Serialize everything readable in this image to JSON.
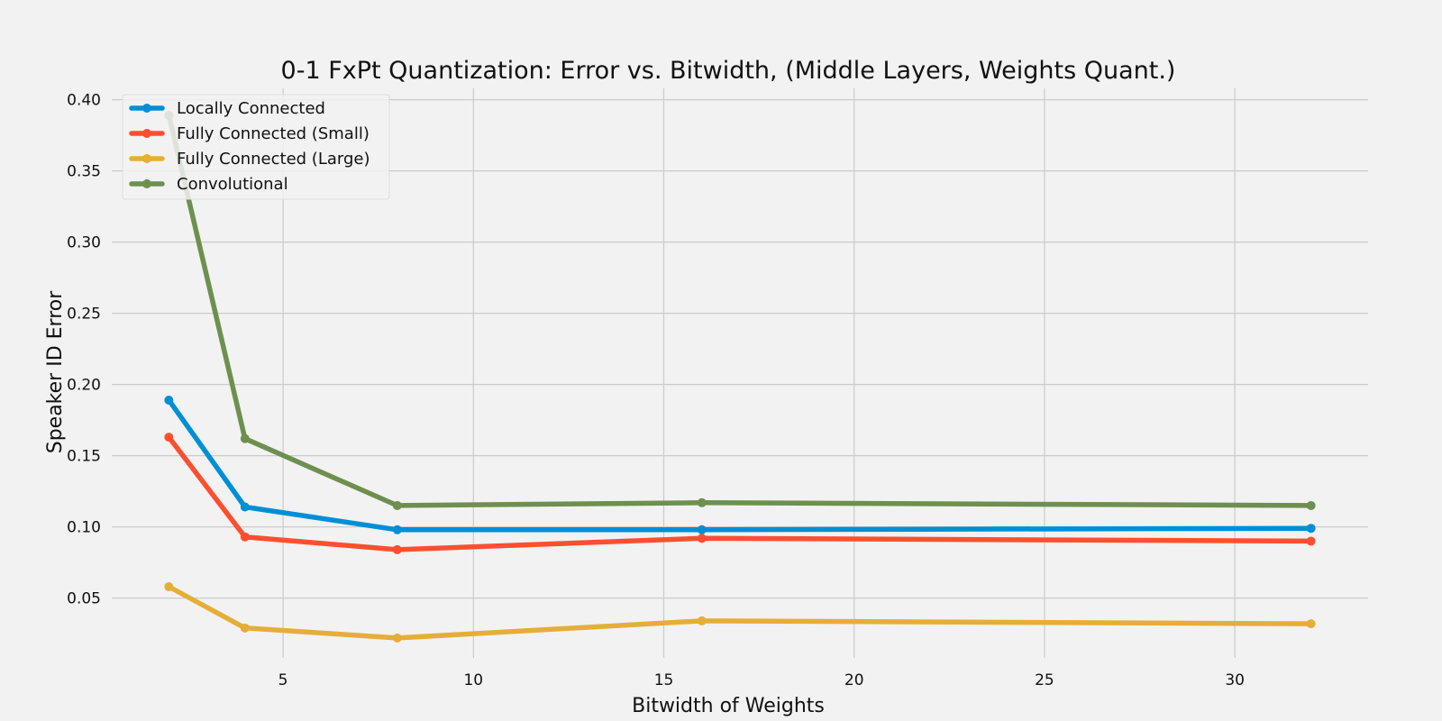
{
  "chart_data": {
    "type": "line",
    "title": "0-1 FxPt Quantization: Error vs. Bitwidth, (Middle Layers, Weights Quant.)",
    "xlabel": "Bitwidth of Weights",
    "ylabel": "Speaker ID Error",
    "x": [
      2,
      4,
      8,
      16,
      32
    ],
    "xlim": [
      0.5,
      33.5
    ],
    "ylim": [
      0.008,
      0.408
    ],
    "xticks": [
      5,
      10,
      15,
      20,
      25,
      30
    ],
    "yticks": [
      0.05,
      0.1,
      0.15,
      0.2,
      0.25,
      0.3,
      0.35,
      0.4
    ],
    "xtick_labels": [
      "5",
      "10",
      "15",
      "20",
      "25",
      "30"
    ],
    "ytick_labels": [
      "0.05",
      "0.10",
      "0.15",
      "0.20",
      "0.25",
      "0.30",
      "0.35",
      "0.40"
    ],
    "grid": true,
    "legend_position": "top-left",
    "series": [
      {
        "name": "Locally Connected",
        "color": "#008fd5",
        "values": [
          0.189,
          0.114,
          0.098,
          0.098,
          0.099
        ]
      },
      {
        "name": "Fully Connected (Small)",
        "color": "#fc4f30",
        "values": [
          0.163,
          0.093,
          0.084,
          0.092,
          0.09
        ]
      },
      {
        "name": "Fully Connected (Large)",
        "color": "#e5ae38",
        "values": [
          0.058,
          0.029,
          0.022,
          0.034,
          0.032
        ]
      },
      {
        "name": "Convolutional",
        "color": "#6d904f",
        "values": [
          0.389,
          0.162,
          0.115,
          0.117,
          0.115
        ]
      }
    ]
  }
}
